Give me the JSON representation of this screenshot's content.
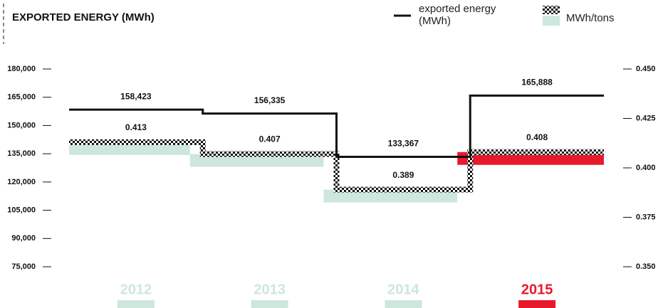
{
  "chart_data": {
    "type": "step",
    "title": "EXPORTED ENERGY (MWh)",
    "categories": [
      "2012",
      "2013",
      "2014",
      "2015"
    ],
    "category_colors": [
      "#cde7dc",
      "#cde7dc",
      "#cde7dc",
      "#e8192c"
    ],
    "series": [
      {
        "name": "exported energy (MWh)",
        "color": "#111111",
        "values": [
          158423,
          156335,
          133367,
          165888
        ],
        "value_labels": [
          "158,423",
          "156,335",
          "133,367",
          "165,888"
        ]
      },
      {
        "name": "MWh/tons",
        "color": "#111111",
        "axis": "y2",
        "values": [
          0.413,
          0.407,
          0.389,
          0.408
        ],
        "value_labels": [
          "0.413",
          "0.407",
          "0.389",
          "0.408"
        ]
      }
    ],
    "ylim": [
      75000,
      180000
    ],
    "yticks": [
      {
        "value": 75000,
        "label": "75,000"
      },
      {
        "value": 90000,
        "label": "90,000"
      },
      {
        "value": 105000,
        "label": "105,000"
      },
      {
        "value": 120000,
        "label": "120,000"
      },
      {
        "value": 135000,
        "label": "135,000"
      },
      {
        "value": 150000,
        "label": "150,000"
      },
      {
        "value": 165000,
        "label": "165,000"
      },
      {
        "value": 180000,
        "label": "180,000"
      }
    ],
    "y2lim": [
      0.35,
      0.45
    ],
    "y2ticks": [
      {
        "value": 0.35,
        "label": "0.350"
      },
      {
        "value": 0.375,
        "label": "0.375"
      },
      {
        "value": 0.4,
        "label": "0.400"
      },
      {
        "value": 0.425,
        "label": "0.425"
      },
      {
        "value": 0.45,
        "label": "0.450"
      }
    ]
  }
}
